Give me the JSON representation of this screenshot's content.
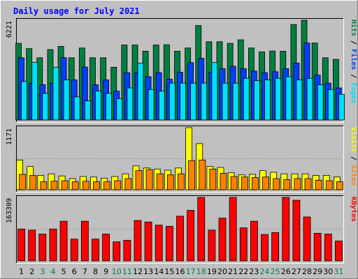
{
  "chart_data": {
    "type": "bar",
    "title": "Daily usage for July 2021",
    "categories": [
      "1",
      "2",
      "3",
      "4",
      "5",
      "6",
      "7",
      "8",
      "9",
      "10",
      "11",
      "12",
      "13",
      "14",
      "15",
      "16",
      "17",
      "18",
      "19",
      "20",
      "21",
      "22",
      "23",
      "24",
      "25",
      "26",
      "27",
      "28",
      "29",
      "30",
      "31"
    ],
    "weekend_days": [
      "3",
      "4",
      "10",
      "11",
      "17",
      "18",
      "24",
      "25",
      "31"
    ],
    "panels": [
      {
        "id": "hits-files-pages",
        "max_label": "6221",
        "ymax": 6221,
        "legend": [
          "Pages",
          "Files",
          "Hits"
        ],
        "series": [
          {
            "name": "Hits",
            "color": "#008040",
            "values": [
              4780,
              4450,
              3880,
              4390,
              4590,
              3880,
              4490,
              3880,
              3880,
              3290,
              4680,
              4680,
              4290,
              4680,
              4690,
              4290,
              4490,
              5890,
              4880,
              4880,
              4780,
              5000,
              4490,
              4250,
              4300,
              4290,
              5950,
              6221,
              4800,
              3880,
              3780
            ]
          },
          {
            "name": "Files",
            "color": "#0040ff",
            "values": [
              3880,
              2290,
              2200,
              2300,
              3890,
              2500,
              3300,
              2200,
              2500,
              1800,
              2950,
              2950,
              2700,
              2950,
              2550,
              2980,
              3580,
              3850,
              2980,
              3200,
              3350,
              3200,
              3050,
              2950,
              3010,
              3200,
              3550,
              4800,
              2800,
              2300,
              2000
            ]
          },
          {
            "name": "Pages",
            "color": "#00e0ff",
            "values": [
              2400,
              3600,
              1660,
              3280,
              2500,
              1440,
              1190,
              1800,
              1660,
              1330,
              2000,
              3550,
              1900,
              1800,
              2300,
              2300,
              2300,
              2300,
              3580,
              2300,
              2300,
              2600,
              2450,
              2500,
              2600,
              2700,
              2500,
              2600,
              2200,
              1900,
              1600
            ]
          }
        ]
      },
      {
        "id": "visits-sites",
        "max_label": "1171",
        "ymax": 1171,
        "legend": [
          "Sites",
          "Visits"
        ],
        "series": [
          {
            "name": "Visits",
            "color": "#ffff00",
            "values": [
              560,
              440,
              270,
              300,
              260,
              210,
              250,
              240,
              220,
              250,
              300,
              450,
              410,
              390,
              370,
              410,
              1171,
              870,
              440,
              420,
              320,
              280,
              290,
              360,
              330,
              300,
              300,
              300,
              270,
              270,
              240
            ]
          },
          {
            "name": "Sites",
            "color": "#ff8000",
            "values": [
              290,
              270,
              150,
              160,
              170,
              150,
              160,
              150,
              150,
              170,
              210,
              360,
              380,
              300,
              280,
              300,
              550,
              560,
              390,
              310,
              250,
              240,
              230,
              240,
              210,
              190,
              210,
              210,
              180,
              170,
              150
            ]
          }
        ]
      },
      {
        "id": "kbytes",
        "max_label": "163309",
        "ymax": 163309,
        "legend": [
          "KBytes"
        ],
        "series": [
          {
            "name": "KBytes",
            "color": "#ff0000",
            "values": [
              82000,
              79000,
              69000,
              82000,
              102000,
              56000,
              102000,
              56000,
              69000,
              49000,
              53000,
              104000,
              100000,
              92000,
              89000,
              115000,
              130000,
              163309,
              79000,
              110000,
              163309,
              85000,
              102000,
              68000,
              73000,
              163309,
              156000,
              113000,
              71000,
              69000,
              51000
            ]
          }
        ]
      }
    ]
  }
}
